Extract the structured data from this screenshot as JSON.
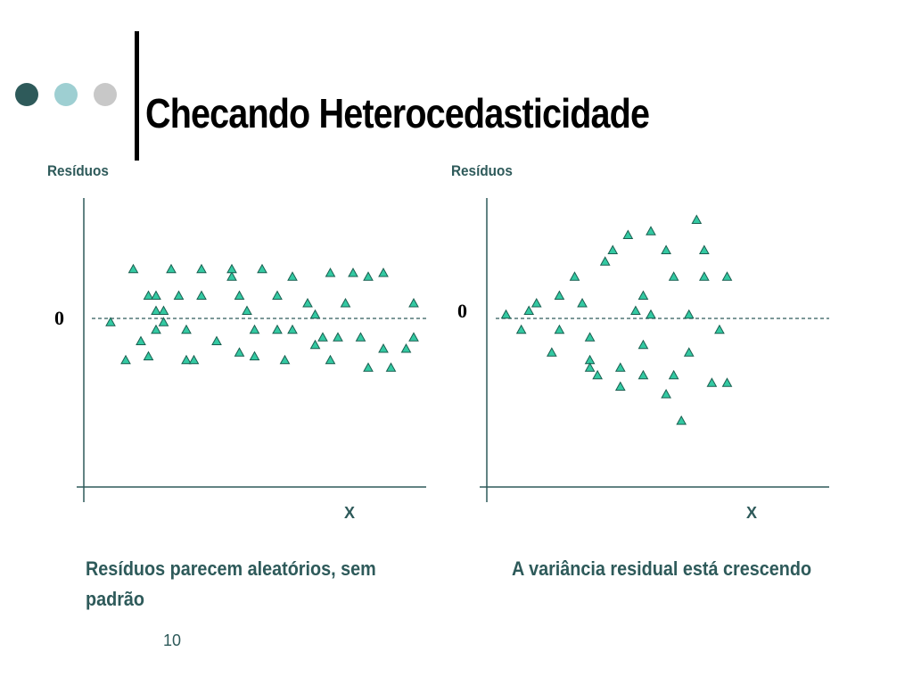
{
  "slide": {
    "title": "Checando Heterocedasticidade",
    "page_number": "10",
    "decor_dots": [
      "#2e5a5a",
      "#9ecfd2",
      "#c8c8c8"
    ]
  },
  "left": {
    "ylabel": "Resíduos",
    "xlabel": "X",
    "zero_label": "0",
    "caption_line1": "Resíduos parecem aleatórios, sem",
    "caption_line2": "padrão"
  },
  "right": {
    "ylabel": "Resíduos",
    "xlabel": "X",
    "zero_label": "0",
    "caption": "A variância residual está crescendo"
  },
  "colors": {
    "marker_fill": "#33c9a2",
    "marker_stroke": "#1a5f50",
    "accent_text": "#2e5a5a"
  },
  "chart_data": [
    {
      "type": "scatter",
      "xlabel": "X",
      "ylabel": "Resíduos",
      "reference_line_y": 0,
      "xlim": [
        0,
        50
      ],
      "ylim": [
        -22,
        16
      ],
      "x": [
        2,
        4,
        5,
        6,
        7,
        7,
        8,
        8,
        8,
        9,
        9,
        10,
        11,
        12,
        12,
        13,
        14,
        14,
        16,
        18,
        18,
        19,
        19,
        20,
        21,
        21,
        22,
        24,
        24,
        25,
        26,
        26,
        28,
        29,
        29,
        30,
        31,
        31,
        32,
        33,
        34,
        35,
        36,
        36,
        38,
        38,
        39,
        41,
        42,
        42
      ],
      "y": [
        -0.5,
        -5.5,
        6.5,
        -3,
        3,
        -5,
        1,
        3,
        -1.5,
        -0.5,
        1,
        6.5,
        3,
        -1.5,
        -5.5,
        -5.5,
        6.5,
        3,
        -3,
        5.5,
        6.5,
        3,
        -4.5,
        1,
        -1.5,
        -5,
        6.5,
        -1.5,
        3,
        -5.5,
        5.5,
        -1.5,
        2,
        -3.5,
        0.5,
        -2.5,
        -5.5,
        6,
        -2.5,
        2,
        6,
        -2.5,
        -6.5,
        5.5,
        6,
        -4,
        -6.5,
        -4,
        2,
        -2.5
      ]
    },
    {
      "type": "scatter",
      "xlabel": "X",
      "ylabel": "Resíduos",
      "reference_line_y": 0,
      "xlim": [
        0,
        45
      ],
      "ylim": [
        -22,
        16
      ],
      "x": [
        1,
        3,
        4,
        5,
        7,
        8,
        8,
        10,
        11,
        12,
        12,
        12,
        13,
        14,
        15,
        16,
        16,
        17,
        18,
        19,
        19,
        19,
        20,
        20,
        22,
        22,
        23,
        23,
        24,
        25,
        25,
        26,
        27,
        27,
        28,
        29,
        30,
        30
      ],
      "y": [
        0.5,
        -1.5,
        1,
        2,
        -4.5,
        -1.5,
        3,
        5.5,
        2,
        -2.5,
        -5.5,
        -6.5,
        -7.5,
        7.5,
        9,
        -9,
        -6.5,
        11,
        1,
        3,
        -7.5,
        -3.5,
        11.5,
        0.5,
        -10,
        9,
        -7.5,
        5.5,
        -13.5,
        -4.5,
        0.5,
        13,
        9,
        5.5,
        -8.5,
        -1.5,
        5.5,
        -8.5
      ]
    }
  ]
}
